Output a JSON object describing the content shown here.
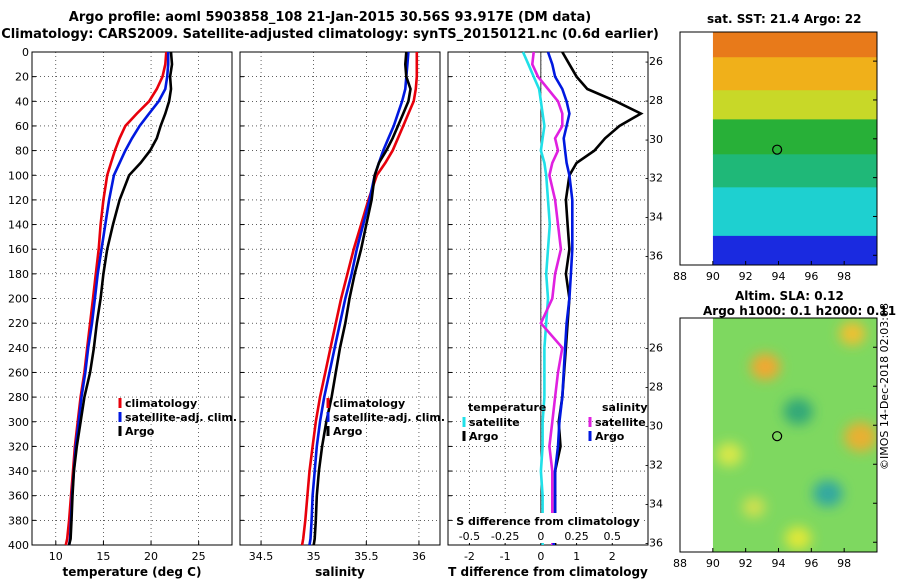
{
  "title_line1": "Argo profile: aoml 5903858_108 21-Jan-2015 30.56S 93.917E (DM data)",
  "title_line2": "Climatology: CARS2009. Satellite-adjusted climatology: synTS_20150121.nc (0.6d earlier)",
  "sst_title": "sat. SST: 21.4 Argo: 22",
  "sla_title1": "Altim. SLA: 0.12",
  "sla_title2": "Argo h1000: 0.1 h2000: 0.11",
  "credit": "©IMOS 14-Dec-2018 02:03:08",
  "colors": {
    "climatology": "#e8000b",
    "satellite": "#0018e0",
    "argo": "#000000",
    "sat_diff_T": "#20e0e8",
    "sat_diff_S": "#e020e0"
  },
  "chart_data": [
    {
      "type": "line",
      "name": "temperature",
      "xlabel": "temperature (deg C)",
      "ylabel": "",
      "xlim": [
        7.5,
        28.5
      ],
      "ylim": [
        400,
        0
      ],
      "xticks": [
        10,
        15,
        20,
        25
      ],
      "yticks": [
        0,
        20,
        40,
        60,
        80,
        100,
        120,
        140,
        160,
        180,
        200,
        220,
        240,
        260,
        280,
        300,
        320,
        340,
        360,
        380,
        400
      ],
      "grid": true,
      "legend": [
        "climatology",
        "satellite-adj. clim.",
        "Argo"
      ],
      "legend_position": "lower-right",
      "series": [
        {
          "name": "climatology",
          "color_key": "climatology",
          "x": [
            21.6,
            21.5,
            21.2,
            20.6,
            19.8,
            18.5,
            17.3,
            16.7,
            16.2,
            15.8,
            15.4,
            15.0,
            14.7,
            14.5,
            14.2,
            13.9,
            13.6,
            13.3,
            13.0,
            12.6,
            12.3,
            12.0,
            11.8,
            11.6,
            11.4,
            11.2,
            11.05
          ],
          "y": [
            0,
            10,
            20,
            30,
            40,
            50,
            60,
            70,
            80,
            90,
            100,
            120,
            140,
            160,
            180,
            200,
            220,
            240,
            260,
            280,
            300,
            320,
            340,
            360,
            380,
            395,
            400
          ]
        },
        {
          "name": "satellite-adj. clim.",
          "color_key": "satellite",
          "x": [
            21.8,
            21.8,
            21.7,
            21.5,
            20.8,
            19.8,
            18.8,
            18.0,
            17.3,
            16.7,
            16.1,
            15.6,
            15.2,
            14.8,
            14.4,
            14.1,
            13.8,
            13.4,
            13.1,
            12.7,
            12.4,
            12.1,
            11.9,
            11.7,
            11.6,
            11.5,
            11.4
          ],
          "y": [
            0,
            10,
            20,
            30,
            40,
            50,
            60,
            70,
            80,
            90,
            100,
            120,
            140,
            160,
            180,
            200,
            220,
            240,
            260,
            280,
            300,
            320,
            340,
            360,
            380,
            395,
            400
          ]
        },
        {
          "name": "Argo",
          "color_key": "argo",
          "x": [
            22.1,
            22.2,
            22.0,
            22.1,
            21.9,
            21.5,
            21.0,
            20.6,
            19.9,
            18.9,
            17.7,
            16.7,
            16.0,
            15.4,
            15.0,
            14.7,
            14.3,
            14.0,
            13.6,
            13.0,
            12.6,
            12.2,
            11.9,
            11.75,
            11.65,
            11.55,
            11.4
          ],
          "y": [
            0,
            10,
            20,
            30,
            40,
            50,
            60,
            70,
            80,
            90,
            100,
            120,
            140,
            160,
            180,
            200,
            220,
            240,
            260,
            280,
            300,
            320,
            340,
            360,
            380,
            395,
            400
          ]
        }
      ]
    },
    {
      "type": "line",
      "name": "salinity",
      "xlabel": "salinity",
      "ylabel": "",
      "xlim": [
        34.3,
        36.2
      ],
      "ylim": [
        400,
        0
      ],
      "xticks": [
        34.5,
        35,
        35.5,
        36
      ],
      "yticks": [
        0,
        20,
        40,
        60,
        80,
        100,
        120,
        140,
        160,
        180,
        200,
        220,
        240,
        260,
        280,
        300,
        320,
        340,
        360,
        380,
        400
      ],
      "grid": true,
      "legend": [
        "climatology",
        "satellite-adj. clim.",
        "Argo"
      ],
      "legend_position": "lower-right",
      "series": [
        {
          "name": "climatology",
          "color_key": "climatology",
          "x": [
            35.98,
            35.98,
            35.98,
            35.97,
            35.95,
            35.9,
            35.85,
            35.8,
            35.75,
            35.68,
            35.6,
            35.52,
            35.45,
            35.38,
            35.32,
            35.26,
            35.21,
            35.16,
            35.11,
            35.06,
            35.02,
            34.99,
            34.96,
            34.94,
            34.92,
            34.9,
            34.89
          ],
          "y": [
            0,
            10,
            20,
            30,
            40,
            50,
            60,
            70,
            80,
            90,
            100,
            120,
            140,
            160,
            180,
            200,
            220,
            240,
            260,
            280,
            300,
            320,
            340,
            360,
            380,
            395,
            400
          ]
        },
        {
          "name": "satellite-adj. clim.",
          "color_key": "satellite",
          "x": [
            35.9,
            35.89,
            35.88,
            35.87,
            35.84,
            35.8,
            35.76,
            35.71,
            35.66,
            35.62,
            35.58,
            35.53,
            35.47,
            35.41,
            35.36,
            35.3,
            35.25,
            35.2,
            35.15,
            35.1,
            35.06,
            35.03,
            35.01,
            34.99,
            34.98,
            34.97,
            34.96
          ],
          "y": [
            0,
            10,
            20,
            30,
            40,
            50,
            60,
            70,
            80,
            90,
            100,
            120,
            140,
            160,
            180,
            200,
            220,
            240,
            260,
            280,
            300,
            320,
            340,
            360,
            380,
            395,
            400
          ]
        },
        {
          "name": "Argo",
          "color_key": "argo",
          "x": [
            35.88,
            35.87,
            35.88,
            35.92,
            35.9,
            35.85,
            35.8,
            35.75,
            35.69,
            35.62,
            35.58,
            35.55,
            35.5,
            35.45,
            35.39,
            35.34,
            35.3,
            35.25,
            35.21,
            35.17,
            35.12,
            35.08,
            35.05,
            35.03,
            35.02,
            35.01,
            35.0
          ],
          "y": [
            0,
            10,
            20,
            30,
            40,
            50,
            60,
            70,
            80,
            90,
            100,
            120,
            140,
            160,
            180,
            200,
            220,
            240,
            260,
            280,
            300,
            320,
            340,
            360,
            380,
            395,
            400
          ]
        }
      ]
    },
    {
      "type": "line",
      "name": "differences",
      "xlabel": "T difference from climatology",
      "top_xlabel": "S difference from climatology",
      "xlim": [
        -2.6,
        3.0
      ],
      "top_xlim": [
        -0.65,
        0.75
      ],
      "ylim": [
        400,
        0
      ],
      "xticks": [
        -2,
        -1,
        0,
        1,
        2
      ],
      "top_xticks": [
        -0.5,
        -0.25,
        0,
        0.25,
        0.5
      ],
      "top_xtick_labels": [
        "-0.5",
        "-0.25",
        "0",
        "0.25",
        "0.5"
      ],
      "yticks": [
        0,
        20,
        40,
        60,
        80,
        100,
        120,
        140,
        160,
        180,
        200,
        220,
        240,
        260,
        280,
        300,
        320,
        340,
        360,
        380,
        400
      ],
      "grid": true,
      "legend_temperature_title": "temperature",
      "legend_salinity_title": "salinity",
      "legend_temperature": [
        "satellite",
        "Argo"
      ],
      "legend_salinity": [
        "satellite",
        "Argo"
      ],
      "series": [
        {
          "name": "T satellite",
          "color_key": "sat_diff_T",
          "axis": "T",
          "x": [
            -0.5,
            -0.35,
            -0.2,
            -0.05,
            0.0,
            0.05,
            0.1,
            0.05,
            0.0,
            0.1,
            0.15,
            0.2,
            0.25,
            0.2,
            0.15,
            0.2,
            0.15,
            0.1,
            0.1,
            0.1,
            0.05,
            0.05,
            0.0,
            0.05,
            0.05,
            0.05,
            0.05
          ],
          "y": [
            0,
            10,
            20,
            30,
            40,
            50,
            60,
            70,
            80,
            90,
            100,
            120,
            140,
            160,
            180,
            200,
            220,
            240,
            260,
            280,
            300,
            320,
            340,
            360,
            380,
            395,
            400
          ]
        },
        {
          "name": "T Argo",
          "color_key": "argo",
          "axis": "T",
          "x": [
            0.6,
            0.8,
            1.0,
            1.3,
            2.1,
            2.8,
            2.2,
            1.8,
            1.5,
            1.0,
            0.8,
            0.7,
            0.75,
            0.8,
            0.7,
            0.8,
            0.75,
            0.7,
            0.65,
            0.6,
            0.5,
            0.55,
            0.4,
            0.4,
            0.4,
            0.4,
            0.4
          ],
          "y": [
            0,
            10,
            20,
            30,
            40,
            50,
            60,
            70,
            80,
            90,
            100,
            120,
            140,
            160,
            180,
            200,
            220,
            240,
            260,
            280,
            300,
            320,
            340,
            360,
            380,
            395,
            400
          ]
        },
        {
          "name": "S satellite",
          "color_key": "sat_diff_S",
          "axis": "S",
          "x": [
            -0.05,
            -0.06,
            -0.02,
            0.05,
            0.12,
            0.15,
            0.15,
            0.1,
            0.12,
            0.08,
            0.06,
            0.1,
            0.12,
            0.14,
            0.1,
            0.08,
            0.0,
            0.15,
            0.12,
            0.1,
            0.08,
            0.06,
            0.08,
            0.08,
            0.08,
            0.08,
            0.08
          ],
          "y": [
            0,
            10,
            20,
            30,
            40,
            50,
            60,
            70,
            80,
            90,
            100,
            120,
            140,
            160,
            180,
            200,
            220,
            240,
            260,
            280,
            300,
            320,
            340,
            360,
            380,
            395,
            400
          ]
        },
        {
          "name": "S Argo",
          "color_key": "satellite",
          "axis": "S",
          "x": [
            0.05,
            0.08,
            0.1,
            0.15,
            0.18,
            0.2,
            0.18,
            0.16,
            0.17,
            0.18,
            0.2,
            0.22,
            0.22,
            0.22,
            0.21,
            0.2,
            0.18,
            0.17,
            0.16,
            0.15,
            0.13,
            0.12,
            0.1,
            0.1,
            0.1,
            0.09,
            0.09
          ],
          "y": [
            0,
            10,
            20,
            30,
            40,
            50,
            60,
            70,
            80,
            90,
            100,
            120,
            140,
            160,
            180,
            200,
            220,
            240,
            260,
            280,
            300,
            320,
            340,
            360,
            380,
            395,
            400
          ]
        }
      ]
    },
    {
      "type": "heatmap",
      "name": "sst_map",
      "title": "sat. SST: 21.4 Argo: 22",
      "xlim": [
        88,
        100
      ],
      "ylim": [
        -36.5,
        -24.5
      ],
      "xticks": [
        88,
        90,
        92,
        94,
        96,
        98
      ],
      "yticks": [
        -26,
        -28,
        -30,
        -32,
        -34,
        -36
      ],
      "marker": {
        "lon": 93.917,
        "lat": -30.56
      },
      "data_extent_lon": [
        90,
        100
      ],
      "bands": [
        {
          "lat_from": -24.5,
          "lat_to": -25.8,
          "color": "#e87a1a"
        },
        {
          "lat_from": -25.8,
          "lat_to": -27.5,
          "color": "#f0b01a"
        },
        {
          "lat_from": -27.5,
          "lat_to": -29.0,
          "color": "#c8d828"
        },
        {
          "lat_from": -29.0,
          "lat_to": -30.8,
          "color": "#28b038"
        },
        {
          "lat_from": -30.8,
          "lat_to": -32.5,
          "color": "#1fb878"
        },
        {
          "lat_from": -32.5,
          "lat_to": -35.0,
          "color": "#1ed0d0"
        },
        {
          "lat_from": -35.0,
          "lat_to": -36.5,
          "color": "#1a2ae0"
        }
      ]
    },
    {
      "type": "heatmap",
      "name": "sla_map",
      "title": "Altim. SLA: 0.12",
      "subtitle": "Argo h1000: 0.1 h2000: 0.11",
      "xlim": [
        88,
        100
      ],
      "ylim": [
        -36.5,
        -24.5
      ],
      "xticks": [
        88,
        90,
        92,
        94,
        96,
        98
      ],
      "yticks": [
        -26,
        -28,
        -30,
        -32,
        -34,
        -36
      ],
      "marker": {
        "lon": 93.917,
        "lat": -30.56
      },
      "data_extent_lon": [
        90,
        100
      ],
      "base_color": "#7ed860",
      "blobs": [
        {
          "lon": 93.2,
          "lat": -27.0,
          "r": 0.9,
          "color": "#f0a830"
        },
        {
          "lon": 98.5,
          "lat": -25.3,
          "r": 0.8,
          "color": "#f0c030"
        },
        {
          "lon": 99.0,
          "lat": -30.6,
          "r": 1.0,
          "color": "#e8b030"
        },
        {
          "lon": 95.2,
          "lat": -29.3,
          "r": 0.9,
          "color": "#30a878"
        },
        {
          "lon": 97.0,
          "lat": -33.5,
          "r": 0.9,
          "color": "#30a8a0"
        },
        {
          "lon": 91.0,
          "lat": -31.5,
          "r": 0.8,
          "color": "#d8e848"
        },
        {
          "lon": 95.2,
          "lat": -35.8,
          "r": 0.8,
          "color": "#e0e838"
        },
        {
          "lon": 92.5,
          "lat": -34.2,
          "r": 0.7,
          "color": "#d0e050"
        }
      ]
    }
  ]
}
